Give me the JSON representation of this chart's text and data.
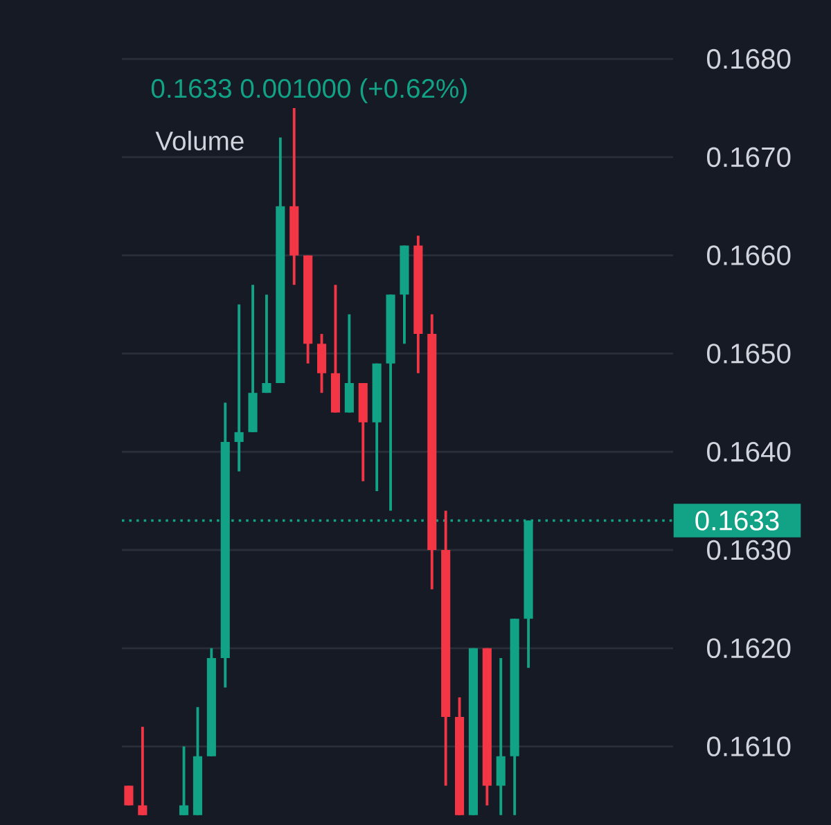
{
  "chart_data": {
    "type": "candlestick",
    "subtitle": "0.1633  0.001000 (+0.62%)",
    "annotations": [
      "Volume"
    ],
    "categories": [
      null,
      null,
      null,
      null,
      null,
      null,
      null,
      null,
      null,
      null,
      null,
      null,
      null,
      null,
      null,
      null,
      null,
      null,
      null,
      null,
      null,
      null,
      null,
      null,
      null,
      null,
      null,
      null,
      null,
      null,
      null,
      null,
      null,
      null,
      null,
      null,
      null,
      null,
      null,
      null
    ],
    "ohlc": [
      [
        0.1606,
        0.1606,
        0.1604,
        0.1604
      ],
      [
        0.1604,
        0.1612,
        0.1603,
        0.1603
      ],
      null,
      null,
      [
        0.1603,
        0.161,
        0.1603,
        0.1604
      ],
      [
        0.1603,
        0.1614,
        0.1603,
        0.1609
      ],
      [
        0.1609,
        0.162,
        0.1609,
        0.1619
      ],
      [
        0.1619,
        0.1645,
        0.1616,
        0.1641
      ],
      [
        0.1641,
        0.1655,
        0.1638,
        0.1642
      ],
      [
        0.1642,
        0.1657,
        0.1642,
        0.1646
      ],
      [
        0.1646,
        0.1656,
        0.1646,
        0.1647
      ],
      [
        0.1647,
        0.1672,
        0.1647,
        0.1665
      ],
      [
        0.1665,
        0.1675,
        0.1657,
        0.166
      ],
      [
        0.166,
        0.166,
        0.1649,
        0.1651
      ],
      [
        0.1651,
        0.1652,
        0.1646,
        0.1648
      ],
      [
        0.1648,
        0.1657,
        0.1644,
        0.1644
      ],
      [
        0.1644,
        0.1654,
        0.1644,
        0.1647
      ],
      [
        0.1647,
        0.1647,
        0.1637,
        0.1643
      ],
      [
        0.1643,
        0.1649,
        0.1636,
        0.1649
      ],
      [
        0.1649,
        0.1656,
        0.1634,
        0.1656
      ],
      [
        0.1656,
        0.1661,
        0.1651,
        0.1661
      ],
      [
        0.1661,
        0.1662,
        0.1648,
        0.1652
      ],
      [
        0.1652,
        0.1654,
        0.1626,
        0.163
      ],
      [
        0.163,
        0.1634,
        0.1606,
        0.1613
      ],
      [
        0.1613,
        0.1615,
        0.1603,
        0.1603
      ],
      [
        0.1603,
        0.162,
        0.1603,
        0.162
      ],
      [
        0.162,
        0.162,
        0.1604,
        0.1606
      ],
      [
        0.1606,
        0.1619,
        0.1603,
        0.1609
      ],
      [
        0.1609,
        0.1623,
        0.1603,
        0.1623
      ],
      [
        0.1623,
        0.1633,
        0.1618,
        0.1633
      ],
      null,
      null,
      null,
      null,
      null,
      null,
      null,
      null,
      null,
      null
    ],
    "ylim": [
      0.1602,
      0.1686
    ],
    "yticks": [
      {
        "value": 0.161,
        "label": "0.1610"
      },
      {
        "value": 0.162,
        "label": "0.1620"
      },
      {
        "value": 0.163,
        "label": "0.1630"
      },
      {
        "value": 0.164,
        "label": "0.1640"
      },
      {
        "value": 0.165,
        "label": "0.1650"
      },
      {
        "value": 0.166,
        "label": "0.1660"
      },
      {
        "value": 0.167,
        "label": "0.1670"
      },
      {
        "value": 0.168,
        "label": "0.1680"
      }
    ],
    "ref_lines": [
      {
        "axis": "y",
        "value": 0.1633,
        "label": "0.1633",
        "color": "#12a286",
        "line_style": "dotted"
      }
    ],
    "grid": "y",
    "tick_labels": "y"
  }
}
